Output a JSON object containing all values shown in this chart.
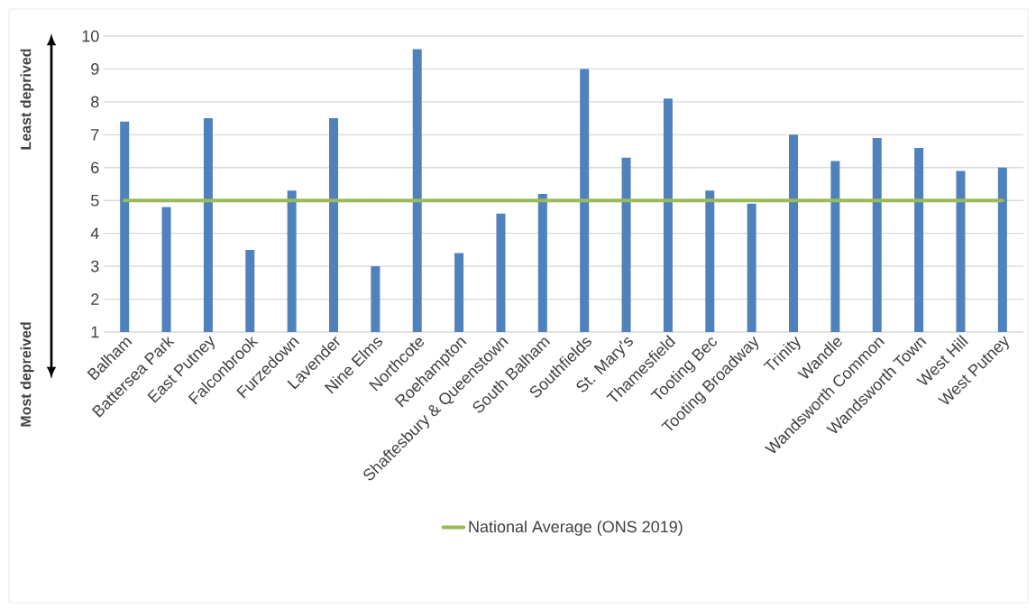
{
  "chart_data": {
    "type": "bar",
    "categories": [
      "Balham",
      "Battersea Park",
      "East Putney",
      "Falconbrook",
      "Furzedown",
      "Lavender",
      "Nine Elms",
      "Northcote",
      "Roehampton",
      "Shaftesbury & Queenstown",
      "South Balham",
      "Southfields",
      "St. Mary's",
      "Thamesfield",
      "Tooting Bec",
      "Tooting Broadway",
      "Trinity",
      "Wandle",
      "Wandsworth Common",
      "Wandsworth Town",
      "West Hill",
      "West Putney"
    ],
    "series": [
      {
        "color": "#4f81bd",
        "values": [
          7.4,
          4.8,
          7.5,
          3.5,
          5.3,
          7.5,
          3.0,
          9.6,
          3.4,
          4.6,
          5.2,
          9.0,
          6.3,
          8.1,
          5.3,
          4.9,
          7.0,
          6.2,
          6.9,
          6.6,
          5.9,
          6.0
        ]
      },
      {
        "type": "line",
        "name": "National Average (ONS 2019)",
        "color": "#9bbb59",
        "values": [
          5,
          5,
          5,
          5,
          5,
          5,
          5,
          5,
          5,
          5,
          5,
          5,
          5,
          5,
          5,
          5,
          5,
          5,
          5,
          5,
          5,
          5
        ]
      }
    ],
    "ylim": [
      1,
      10
    ],
    "yticks": [
      1,
      2,
      3,
      4,
      5,
      6,
      7,
      8,
      9,
      10
    ],
    "grid": "y",
    "legend": "bottom",
    "annotations": [
      "Least deprived",
      "Most depreived"
    ]
  }
}
